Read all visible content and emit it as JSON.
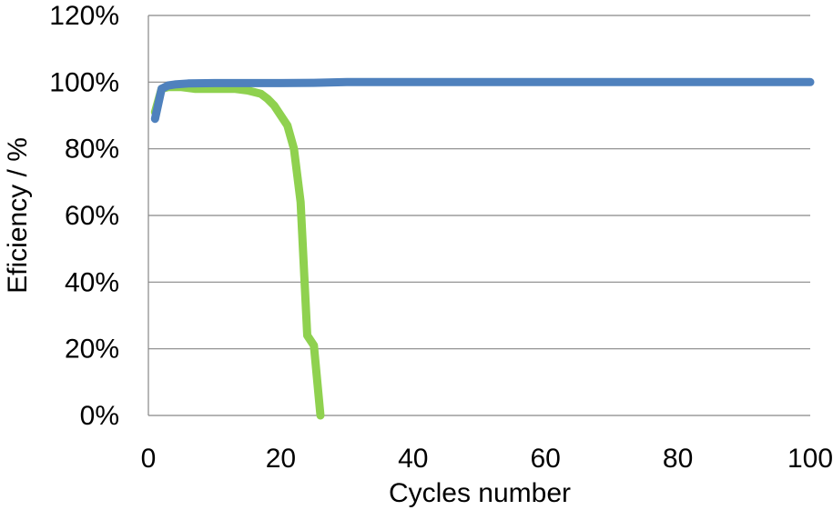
{
  "chart_data": {
    "type": "line",
    "title": "",
    "xlabel": "Cycles number",
    "ylabel": "Eficiency / %",
    "xlim": [
      0,
      100
    ],
    "ylim": [
      0,
      120
    ],
    "x_ticks": [
      0,
      20,
      40,
      60,
      80,
      100
    ],
    "y_ticks": [
      0,
      20,
      40,
      60,
      80,
      100,
      120
    ],
    "y_tick_suffix": "%",
    "grid": "horizontal",
    "legend": "none",
    "series": [
      {
        "color": "#8fd14f",
        "points": [
          [
            1,
            91
          ],
          [
            2,
            98
          ],
          [
            3,
            98.5
          ],
          [
            5,
            98.5
          ],
          [
            7,
            98
          ],
          [
            10,
            98
          ],
          [
            13,
            98
          ],
          [
            15,
            97.5
          ],
          [
            17,
            96.5
          ],
          [
            18,
            95
          ],
          [
            19,
            93
          ],
          [
            20,
            90
          ],
          [
            21,
            87
          ],
          [
            22,
            80
          ],
          [
            23,
            64
          ],
          [
            24,
            24
          ],
          [
            25,
            21
          ],
          [
            26,
            0
          ]
        ]
      },
      {
        "color": "#4f81bd",
        "points": [
          [
            1,
            89
          ],
          [
            2,
            98
          ],
          [
            3,
            99
          ],
          [
            4,
            99.3
          ],
          [
            6,
            99.6
          ],
          [
            10,
            99.7
          ],
          [
            20,
            99.7
          ],
          [
            25,
            99.8
          ],
          [
            30,
            100
          ],
          [
            40,
            100
          ],
          [
            60,
            100
          ],
          [
            80,
            100
          ],
          [
            100,
            100
          ]
        ]
      }
    ]
  }
}
